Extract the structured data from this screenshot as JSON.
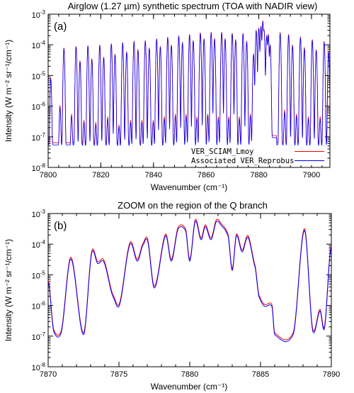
{
  "chart_data": [
    {
      "type": "line",
      "panel_label": "(a)",
      "title": "Airglow (1.27 µm) synthetic spectrum (TOA with NADIR view)",
      "xlabel": "Wavenumber (cm⁻¹)",
      "ylabel": "Intensity (W m⁻² sr⁻¹/cm⁻¹)",
      "xlim": [
        7800,
        7907
      ],
      "ylim": [
        1e-08,
        0.001
      ],
      "yscale": "log",
      "xticks": [
        7800,
        7820,
        7840,
        7860,
        7880,
        7900
      ],
      "xtick_labels": [
        "7800",
        "7820",
        "7840",
        "7860",
        "7880",
        "7900"
      ],
      "yticks": [
        1e-08,
        1e-07,
        1e-06,
        1e-05,
        0.0001,
        0.001
      ],
      "ytick_labels": [
        {
          "base": "10",
          "exp": "-8"
        },
        {
          "base": "10",
          "exp": "-7"
        },
        {
          "base": "10",
          "exp": "-6"
        },
        {
          "base": "10",
          "exp": "-5"
        },
        {
          "base": "10",
          "exp": "-4"
        },
        {
          "base": "10",
          "exp": "-3"
        }
      ],
      "legend": "bottom-right",
      "series": [
        {
          "name": "VER_SCIAM_Lmoy",
          "color": "#ff0000"
        },
        {
          "name": "Associated VER_Reprobus",
          "color": "#0000ff"
        }
      ],
      "baseline": 4e-08,
      "peaks": [
        {
          "x": 7801.0,
          "y": 8e-06
        },
        {
          "x": 7804.5,
          "y": 1e-06
        },
        {
          "x": 7806.0,
          "y": 8e-05
        },
        {
          "x": 7808.9,
          "y": 5e-07
        },
        {
          "x": 7810.6,
          "y": 9e-05
        },
        {
          "x": 7812.1,
          "y": 3e-05
        },
        {
          "x": 7813.6,
          "y": 3e-07
        },
        {
          "x": 7815.1,
          "y": 9.5e-05
        },
        {
          "x": 7816.6,
          "y": 3.5e-05
        },
        {
          "x": 7818.1,
          "y": 2.5e-07
        },
        {
          "x": 7819.6,
          "y": 0.0001
        },
        {
          "x": 7821.1,
          "y": 4e-05
        },
        {
          "x": 7822.6,
          "y": 4e-07
        },
        {
          "x": 7824.0,
          "y": 0.00011
        },
        {
          "x": 7825.4,
          "y": 5e-05
        },
        {
          "x": 7826.9,
          "y": 2e-07
        },
        {
          "x": 7828.3,
          "y": 0.00012
        },
        {
          "x": 7829.8,
          "y": 6e-05
        },
        {
          "x": 7831.3,
          "y": 3e-07
        },
        {
          "x": 7832.6,
          "y": 0.00013
        },
        {
          "x": 7834.1,
          "y": 7e-05
        },
        {
          "x": 7835.6,
          "y": 3e-07
        },
        {
          "x": 7836.9,
          "y": 0.00014
        },
        {
          "x": 7838.4,
          "y": 8e-05
        },
        {
          "x": 7839.9,
          "y": 3e-07
        },
        {
          "x": 7841.2,
          "y": 0.00016
        },
        {
          "x": 7842.6,
          "y": 9e-05
        },
        {
          "x": 7844.1,
          "y": 4e-07
        },
        {
          "x": 7845.4,
          "y": 0.00018
        },
        {
          "x": 7846.8,
          "y": 0.0001
        },
        {
          "x": 7848.3,
          "y": 5e-07
        },
        {
          "x": 7849.6,
          "y": 0.0002
        },
        {
          "x": 7851.0,
          "y": 0.00012
        },
        {
          "x": 7852.4,
          "y": 5e-07
        },
        {
          "x": 7853.7,
          "y": 0.00022
        },
        {
          "x": 7855.1,
          "y": 0.00014
        },
        {
          "x": 7856.5,
          "y": 4e-07
        },
        {
          "x": 7857.8,
          "y": 0.00025
        },
        {
          "x": 7859.2,
          "y": 0.00016
        },
        {
          "x": 7860.6,
          "y": 5e-07
        },
        {
          "x": 7861.9,
          "y": 0.00026
        },
        {
          "x": 7863.2,
          "y": 0.00016
        },
        {
          "x": 7864.6,
          "y": 4e-07
        },
        {
          "x": 7865.9,
          "y": 0.00026
        },
        {
          "x": 7867.2,
          "y": 0.00016
        },
        {
          "x": 7868.6,
          "y": 4e-07
        },
        {
          "x": 7869.9,
          "y": 0.00024
        },
        {
          "x": 7871.2,
          "y": 0.00015
        },
        {
          "x": 7872.6,
          "y": 4e-07
        },
        {
          "x": 7874.0,
          "y": 0.00024
        },
        {
          "x": 7875.4,
          "y": 0.00013
        },
        {
          "x": 7876.8,
          "y": 5e-07
        },
        {
          "x": 7878.0,
          "y": 5e-05
        },
        {
          "x": 7879.0,
          "y": 0.0003
        },
        {
          "x": 7880.0,
          "y": 0.00035
        },
        {
          "x": 7880.8,
          "y": 0.0004
        },
        {
          "x": 7881.5,
          "y": 0.0006
        },
        {
          "x": 7882.0,
          "y": 0.0003
        },
        {
          "x": 7883.0,
          "y": 0.0002
        },
        {
          "x": 7883.6,
          "y": 0.00022
        },
        {
          "x": 7884.3,
          "y": 0.0001
        },
        {
          "x": 7888.1,
          "y": 0.00025
        },
        {
          "x": 7889.8,
          "y": 7e-07
        },
        {
          "x": 7891.3,
          "y": 0.00022
        },
        {
          "x": 7892.8,
          "y": 0.0001
        },
        {
          "x": 7894.3,
          "y": 5e-07
        },
        {
          "x": 7895.8,
          "y": 0.00018
        },
        {
          "x": 7897.3,
          "y": 8e-05
        },
        {
          "x": 7898.8,
          "y": 4e-07
        },
        {
          "x": 7900.3,
          "y": 0.00015
        },
        {
          "x": 7901.8,
          "y": 7e-05
        },
        {
          "x": 7903.3,
          "y": 4e-07
        },
        {
          "x": 7904.8,
          "y": 0.00013
        },
        {
          "x": 7906.5,
          "y": 6e-05
        }
      ],
      "plateaus": [
        {
          "x_start": 7884.8,
          "x_end": 7886.8,
          "y": 1.1e-07
        }
      ]
    },
    {
      "type": "line",
      "panel_label": "(b)",
      "title": "ZOOM on the region of the Q branch",
      "xlabel": "Wavenumber (cm⁻¹)",
      "ylabel": "Intensity (W m⁻² sr⁻¹/cm⁻¹)",
      "xlim": [
        7870,
        7890
      ],
      "ylim": [
        1e-08,
        0.001
      ],
      "yscale": "log",
      "xticks": [
        7870,
        7875,
        7880,
        7885,
        7890
      ],
      "xtick_labels": [
        "7870",
        "7875",
        "7880",
        "7885",
        "7890"
      ],
      "yticks": [
        1e-08,
        1e-07,
        1e-06,
        1e-05,
        0.0001,
        0.001
      ],
      "ytick_labels": [
        {
          "base": "10",
          "exp": "-8"
        },
        {
          "base": "10",
          "exp": "-7"
        },
        {
          "base": "10",
          "exp": "-6"
        },
        {
          "base": "10",
          "exp": "-5"
        },
        {
          "base": "10",
          "exp": "-4"
        },
        {
          "base": "10",
          "exp": "-3"
        }
      ],
      "series": [
        {
          "name": "VER_SCIAM_Lmoy",
          "color": "#ff0000"
        },
        {
          "name": "Associated VER_Reprobus",
          "color": "#0000ff"
        }
      ],
      "points": [
        {
          "x": 7870.0,
          "y": 6e-06
        },
        {
          "x": 7870.4,
          "y": 1.5e-07
        },
        {
          "x": 7870.9,
          "y": 1.3e-07
        },
        {
          "x": 7871.6,
          "y": 3.5e-05
        },
        {
          "x": 7872.5,
          "y": 1.2e-07
        },
        {
          "x": 7873.1,
          "y": 6e-05
        },
        {
          "x": 7873.5,
          "y": 2.5e-05
        },
        {
          "x": 7873.9,
          "y": 3e-05
        },
        {
          "x": 7874.6,
          "y": 2e-06
        },
        {
          "x": 7875.0,
          "y": 1e-06
        },
        {
          "x": 7875.8,
          "y": 0.00011
        },
        {
          "x": 7876.3,
          "y": 3e-05
        },
        {
          "x": 7876.7,
          "y": 0.0001
        },
        {
          "x": 7877.0,
          "y": 0.00015
        },
        {
          "x": 7877.5,
          "y": 4e-06
        },
        {
          "x": 7878.3,
          "y": 0.0002
        },
        {
          "x": 7878.7,
          "y": 3e-05
        },
        {
          "x": 7879.2,
          "y": 0.00035
        },
        {
          "x": 7879.7,
          "y": 0.0003
        },
        {
          "x": 7880.0,
          "y": 3e-05
        },
        {
          "x": 7880.4,
          "y": 0.0006
        },
        {
          "x": 7880.8,
          "y": 0.00015
        },
        {
          "x": 7881.1,
          "y": 0.0004
        },
        {
          "x": 7881.5,
          "y": 0.00015
        },
        {
          "x": 7881.9,
          "y": 0.0006
        },
        {
          "x": 7882.3,
          "y": 0.0004
        },
        {
          "x": 7882.7,
          "y": 0.0002
        },
        {
          "x": 7883.0,
          "y": 1.5e-05
        },
        {
          "x": 7883.3,
          "y": 0.0002
        },
        {
          "x": 7883.7,
          "y": 6e-05
        },
        {
          "x": 7884.1,
          "y": 0.00018
        },
        {
          "x": 7884.6,
          "y": 2e-05
        },
        {
          "x": 7884.9,
          "y": 2e-06
        },
        {
          "x": 7885.3,
          "y": 1e-06
        },
        {
          "x": 7885.8,
          "y": 1e-06
        },
        {
          "x": 7886.0,
          "y": 1.2e-07
        },
        {
          "x": 7887.3,
          "y": 1.2e-07
        },
        {
          "x": 7888.1,
          "y": 0.0003
        },
        {
          "x": 7888.7,
          "y": 1.5e-07
        },
        {
          "x": 7889.2,
          "y": 7e-07
        },
        {
          "x": 7889.5,
          "y": 1.8e-07
        },
        {
          "x": 7890.0,
          "y": 8e-05
        }
      ]
    }
  ]
}
